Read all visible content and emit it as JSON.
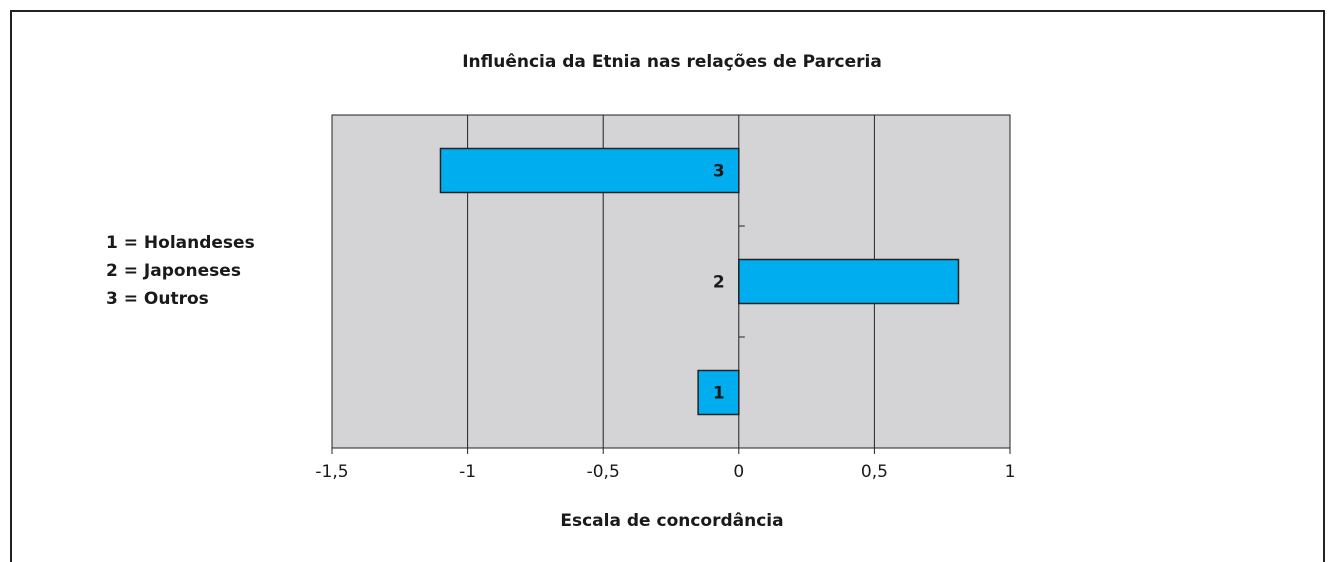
{
  "chart_data": {
    "type": "barh",
    "title": "Influência da Etnia nas relações de Parceria",
    "xlabel": "Escala de concordância",
    "annotations": [
      "1 = Holandeses",
      "2 = Japoneses",
      "3 = Outros"
    ],
    "categories": [
      "1",
      "2",
      "3"
    ],
    "values": [
      -0.15,
      0.81,
      -1.1
    ],
    "color": "#00aeef",
    "xlim": [
      -1.5,
      1
    ],
    "xticks": [
      {
        "value": -1.5,
        "label": "-1,5"
      },
      -1,
      {
        "value": -0.5,
        "label": "-0,5"
      },
      0,
      {
        "value": 0.5,
        "label": "0,5"
      },
      1
    ],
    "grid": true
  }
}
